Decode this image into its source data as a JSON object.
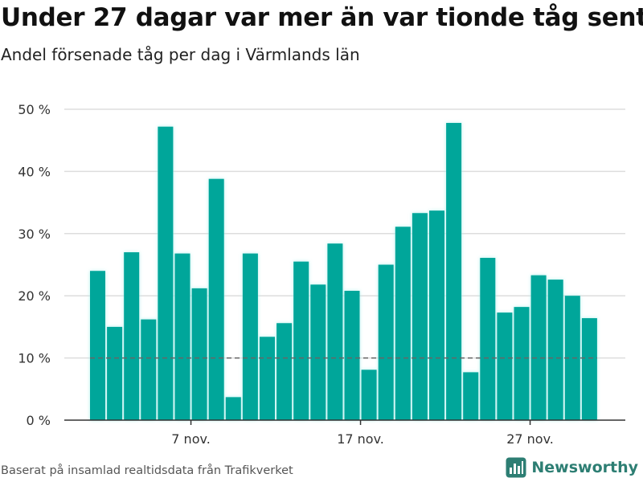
{
  "title": "Under 27 dagar var mer än var tionde tåg sent",
  "subtitle": "Andel försenade tåg per dag i Värmlands län",
  "footer": "Baserat på insamlad realtidsdata från Trafikverket",
  "brand": "Newsworthy",
  "colors": {
    "bar": "#00a69a",
    "bar_glow": "#b5f1ee",
    "grid": "#dddddd",
    "reference": "#666666",
    "brand": "#2d7e73"
  },
  "chart_data": {
    "type": "bar",
    "x": [
      "2 nov.",
      "3 nov.",
      "4 nov.",
      "5 nov.",
      "6 nov.",
      "7 nov.",
      "8 nov.",
      "9 nov.",
      "10 nov.",
      "11 nov.",
      "12 nov.",
      "13 nov.",
      "14 nov.",
      "15 nov.",
      "16 nov.",
      "17 nov.",
      "18 nov.",
      "19 nov.",
      "20 nov.",
      "21 nov.",
      "22 nov.",
      "23 nov.",
      "24 nov.",
      "25 nov.",
      "26 nov.",
      "27 nov.",
      "28 nov.",
      "29 nov.",
      "30 nov.",
      "1 dec."
    ],
    "values": [
      24,
      15,
      27,
      16.2,
      47.2,
      26.8,
      21.2,
      38.8,
      3.7,
      26.8,
      13.4,
      15.6,
      25.5,
      21.8,
      28.4,
      20.8,
      8.1,
      25,
      31.1,
      33.3,
      33.7,
      47.8,
      7.7,
      26.1,
      17.3,
      18.2,
      23.3,
      22.6,
      20,
      16.4
    ],
    "ylim": [
      0,
      50
    ],
    "yticks": [
      0,
      10,
      20,
      30,
      40,
      50
    ],
    "ytick_labels": [
      "0 %",
      "10 %",
      "20 %",
      "30 %",
      "40 %",
      "50 %"
    ],
    "xticks": [
      "7 nov.",
      "17 nov.",
      "27 nov."
    ],
    "reference_line": 10,
    "grid": true,
    "legend": "none"
  }
}
